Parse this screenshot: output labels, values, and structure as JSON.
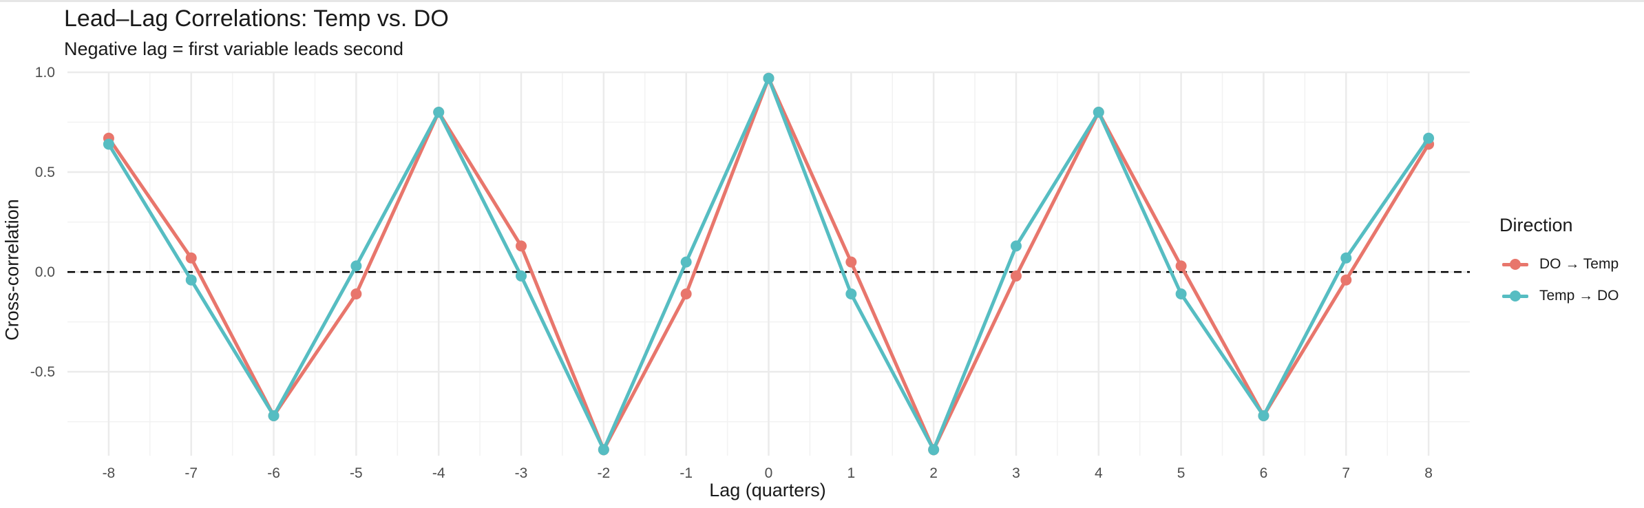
{
  "chart_data": {
    "type": "line",
    "title": "Lead–Lag Correlations: Temp vs. DO",
    "subtitle": "Negative lag = first variable leads second",
    "xlabel": "Lag (quarters)",
    "ylabel": "Cross-correlation",
    "x": [
      -8,
      -7,
      -6,
      -5,
      -4,
      -3,
      -2,
      -1,
      0,
      1,
      2,
      3,
      4,
      5,
      6,
      7,
      8
    ],
    "xlim": [
      -8.5,
      8.5
    ],
    "ylim": [
      -0.92,
      1.0
    ],
    "yticks": [
      1.0,
      0.5,
      0.0,
      -0.5
    ],
    "ytick_labels": [
      "1.0",
      "0.5",
      "0.0",
      "-0.5"
    ],
    "xtick_labels": [
      "-8",
      "-7",
      "-6",
      "-5",
      "-4",
      "-3",
      "-2",
      "-1",
      "0",
      "1",
      "2",
      "3",
      "4",
      "5",
      "6",
      "7",
      "8"
    ],
    "reference_line": {
      "y": 0,
      "style": "dashed",
      "color": "#000000"
    },
    "legend": {
      "title": "Direction",
      "placement": "right"
    },
    "grid": true,
    "series": [
      {
        "name": "DO → Temp",
        "color": "#E8766C",
        "values": [
          0.67,
          0.07,
          -0.72,
          -0.11,
          0.8,
          0.13,
          -0.89,
          -0.11,
          0.97,
          0.05,
          -0.89,
          -0.02,
          0.8,
          0.03,
          -0.72,
          -0.04,
          0.64
        ]
      },
      {
        "name": "Temp → DO",
        "color": "#56BDC2",
        "values": [
          0.64,
          -0.04,
          -0.72,
          0.03,
          0.8,
          -0.02,
          -0.89,
          0.05,
          0.97,
          -0.11,
          -0.89,
          0.13,
          0.8,
          -0.11,
          -0.72,
          0.07,
          0.67
        ]
      }
    ]
  }
}
